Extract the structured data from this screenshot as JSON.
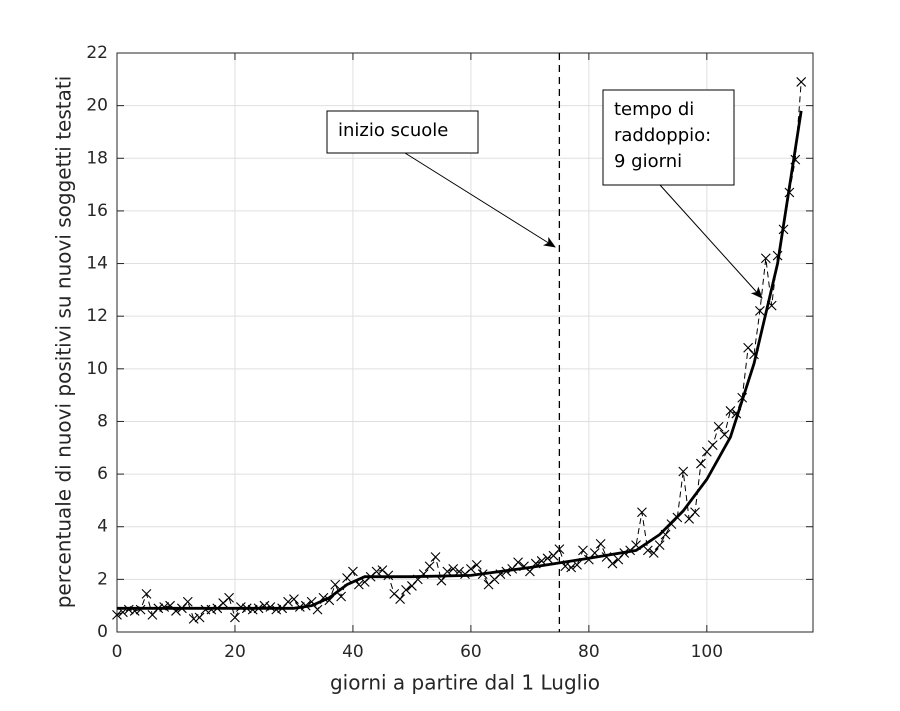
{
  "chart_data": {
    "type": "line",
    "x_label": "giorni a partire dal 1 Luglio",
    "y_label": "percentuale di nuovi positivi su nuovi soggetti testati",
    "xlim": [
      0,
      118
    ],
    "xticks": [
      0,
      20,
      40,
      60,
      80,
      100
    ],
    "ylim": [
      0,
      22
    ],
    "yticks": [
      0,
      2,
      4,
      6,
      8,
      10,
      12,
      14,
      16,
      18,
      20,
      22
    ],
    "grid": true,
    "vline": {
      "x": 75,
      "style": "dashed",
      "color": "#000000"
    },
    "annotations": [
      {
        "lines": [
          "inizio scuole"
        ]
      },
      {
        "lines": [
          "tempo di",
          "raddoppio:",
          "9 giorni"
        ]
      }
    ],
    "series": [
      {
        "color": "#000000",
        "style": "dashed",
        "marker": "x",
        "x": [
          0,
          1,
          2,
          3,
          4,
          5,
          6,
          7,
          8,
          9,
          10,
          11,
          12,
          13,
          14,
          15,
          16,
          17,
          18,
          19,
          20,
          21,
          22,
          23,
          24,
          25,
          26,
          27,
          28,
          29,
          30,
          31,
          32,
          33,
          34,
          35,
          36,
          37,
          38,
          39,
          40,
          41,
          42,
          43,
          44,
          45,
          46,
          47,
          48,
          49,
          50,
          51,
          52,
          53,
          54,
          55,
          56,
          57,
          58,
          59,
          60,
          61,
          62,
          63,
          64,
          65,
          66,
          67,
          68,
          69,
          70,
          71,
          72,
          73,
          74,
          75,
          76,
          77,
          78,
          79,
          80,
          81,
          82,
          83,
          84,
          85,
          86,
          87,
          88,
          89,
          90,
          91,
          92,
          93,
          94,
          95,
          96,
          97,
          98,
          99,
          100,
          101,
          102,
          103,
          104,
          105,
          106,
          107,
          108,
          109,
          110,
          111,
          112,
          113,
          114,
          115,
          116
        ],
        "values": [
          0.65,
          0.75,
          0.85,
          0.8,
          0.85,
          1.45,
          0.65,
          0.9,
          0.95,
          1.0,
          0.8,
          0.9,
          1.15,
          0.5,
          0.55,
          0.85,
          0.85,
          0.9,
          1.1,
          1.3,
          0.55,
          0.95,
          0.9,
          0.85,
          0.9,
          1.0,
          0.95,
          0.85,
          0.9,
          1.15,
          1.25,
          0.95,
          1.0,
          1.15,
          0.85,
          1.3,
          1.2,
          1.8,
          1.35,
          2.05,
          2.3,
          1.8,
          1.9,
          2.1,
          2.3,
          2.35,
          2.15,
          1.45,
          1.25,
          1.6,
          1.75,
          2.0,
          2.2,
          2.5,
          2.85,
          1.95,
          2.3,
          2.4,
          2.3,
          2.2,
          2.4,
          2.55,
          2.2,
          1.8,
          2.0,
          2.2,
          2.3,
          2.4,
          2.65,
          2.5,
          2.3,
          2.6,
          2.7,
          2.8,
          2.9,
          3.15,
          2.5,
          2.45,
          2.55,
          3.1,
          2.75,
          3.0,
          3.35,
          2.85,
          2.6,
          2.75,
          3.0,
          3.1,
          3.3,
          4.55,
          3.1,
          3.0,
          3.3,
          3.7,
          4.1,
          4.35,
          6.1,
          4.3,
          4.55,
          6.4,
          6.85,
          7.1,
          7.8,
          7.5,
          8.4,
          8.3,
          8.9,
          10.8,
          10.55,
          12.2,
          14.2,
          12.4,
          14.3,
          15.3,
          16.7,
          17.95,
          20.9
        ]
      },
      {
        "color": "#000000",
        "style": "solid",
        "x": [
          0,
          30,
          33,
          36,
          39,
          42,
          50,
          60,
          70,
          80,
          88,
          92,
          96,
          100,
          104,
          108,
          112,
          116
        ],
        "values": [
          0.9,
          0.9,
          1.0,
          1.3,
          1.8,
          2.1,
          2.1,
          2.15,
          2.45,
          2.8,
          3.1,
          3.7,
          4.6,
          5.8,
          7.4,
          10.2,
          14.0,
          19.8
        ]
      }
    ]
  }
}
